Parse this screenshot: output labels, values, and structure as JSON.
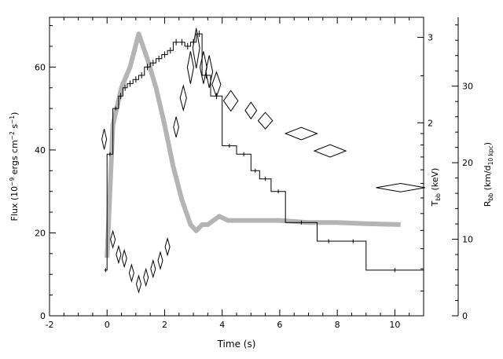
{
  "chart_data": {
    "type": "line",
    "xlabel": "Time (s)",
    "ylabel_left": [
      "Flux (10",
      "−9",
      " ergs cm",
      "−2",
      " s",
      "−1",
      ")"
    ],
    "ylabel_right1": [
      "T",
      "bb",
      " (keV)"
    ],
    "ylabel_right2": [
      "R",
      "bb",
      " (km/d",
      "10 kpc",
      ")"
    ],
    "xlim": [
      -2,
      11
    ],
    "ylim": [
      0,
      72
    ],
    "x_ticks": [
      "-2",
      "0",
      "2",
      "4",
      "6",
      "8",
      "10"
    ],
    "y_ticks": [
      "0",
      "20",
      "40",
      "60"
    ],
    "t_axis": {
      "min": 0.8,
      "max": 3.3,
      "scale": "log",
      "ticks": [
        "2",
        "3"
      ]
    },
    "r_axis": {
      "min": 0,
      "max": 39,
      "ticks": [
        "0",
        "10",
        "20",
        "30"
      ]
    },
    "series": [
      {
        "style": "histogram",
        "bins": [
          [
            -0.1,
            0.0,
            11
          ],
          [
            0.0,
            0.2,
            39
          ],
          [
            0.2,
            0.4,
            50
          ],
          [
            0.4,
            0.55,
            53
          ],
          [
            0.55,
            0.7,
            55
          ],
          [
            0.7,
            0.9,
            56
          ],
          [
            0.9,
            1.1,
            57
          ],
          [
            1.1,
            1.3,
            58
          ],
          [
            1.3,
            1.5,
            60
          ],
          [
            1.5,
            1.7,
            61
          ],
          [
            1.7,
            1.9,
            62
          ],
          [
            1.9,
            2.1,
            63
          ],
          [
            2.1,
            2.3,
            64
          ],
          [
            2.3,
            2.5,
            66
          ],
          [
            2.5,
            2.7,
            66
          ],
          [
            2.7,
            2.9,
            65
          ],
          [
            2.9,
            3.1,
            66
          ],
          [
            3.1,
            3.3,
            68
          ],
          [
            3.3,
            3.6,
            58
          ],
          [
            3.6,
            4.0,
            53
          ],
          [
            4.0,
            4.5,
            41
          ],
          [
            4.5,
            5.0,
            39
          ],
          [
            5.0,
            5.3,
            35
          ],
          [
            5.3,
            5.7,
            33
          ],
          [
            5.7,
            6.2,
            30
          ],
          [
            6.2,
            7.3,
            22.5
          ],
          [
            7.3,
            8.1,
            18
          ],
          [
            8.1,
            9.0,
            18
          ],
          [
            9.0,
            11.0,
            11
          ]
        ]
      },
      {
        "style": "band",
        "x": [
          0.0,
          0.2,
          0.5,
          0.8,
          1.1,
          1.4,
          1.7,
          2.0,
          2.3,
          2.6,
          2.9,
          3.1,
          3.3,
          3.5,
          3.7,
          3.9,
          4.2,
          4.6,
          5.0,
          5.5,
          6.0,
          7.0,
          8.0,
          9.0,
          10.2
        ],
        "y": [
          14,
          46,
          55,
          60,
          68,
          62,
          55,
          46,
          36,
          28,
          22,
          20.5,
          22,
          22,
          23,
          24,
          23,
          23,
          23,
          23,
          23,
          22.5,
          22.5,
          22.2,
          22
        ]
      },
      {
        "style": "diamonds",
        "x": [
          -0.1,
          0.2,
          0.4,
          0.6,
          0.85,
          1.1,
          1.35,
          1.6,
          1.85,
          2.1,
          2.4,
          2.65,
          2.9,
          3.1,
          3.35,
          3.55,
          3.8,
          4.3,
          5.0,
          5.5,
          6.75,
          7.75,
          10.2
        ],
        "y": [
          1.85,
          1.15,
          1.07,
          1.05,
          0.98,
          0.93,
          0.96,
          1.0,
          1.04,
          1.11,
          1.96,
          2.25,
          2.6,
          2.85,
          2.6,
          2.55,
          2.4,
          2.22,
          2.12,
          2.02,
          1.9,
          1.75,
          1.47
        ],
        "dx": [
          0.06,
          0.05,
          0.05,
          0.05,
          0.05,
          0.05,
          0.05,
          0.05,
          0.05,
          0.06,
          0.09,
          0.11,
          0.11,
          0.12,
          0.12,
          0.12,
          0.15,
          0.25,
          0.2,
          0.25,
          0.55,
          0.55,
          0.85
        ],
        "dy": [
          0.05,
          0.04,
          0.04,
          0.04,
          0.04,
          0.04,
          0.04,
          0.04,
          0.04,
          0.04,
          0.05,
          0.06,
          0.08,
          0.1,
          0.08,
          0.08,
          0.06,
          0.05,
          0.04,
          0.04,
          0.03,
          0.03,
          0.02
        ]
      }
    ]
  }
}
